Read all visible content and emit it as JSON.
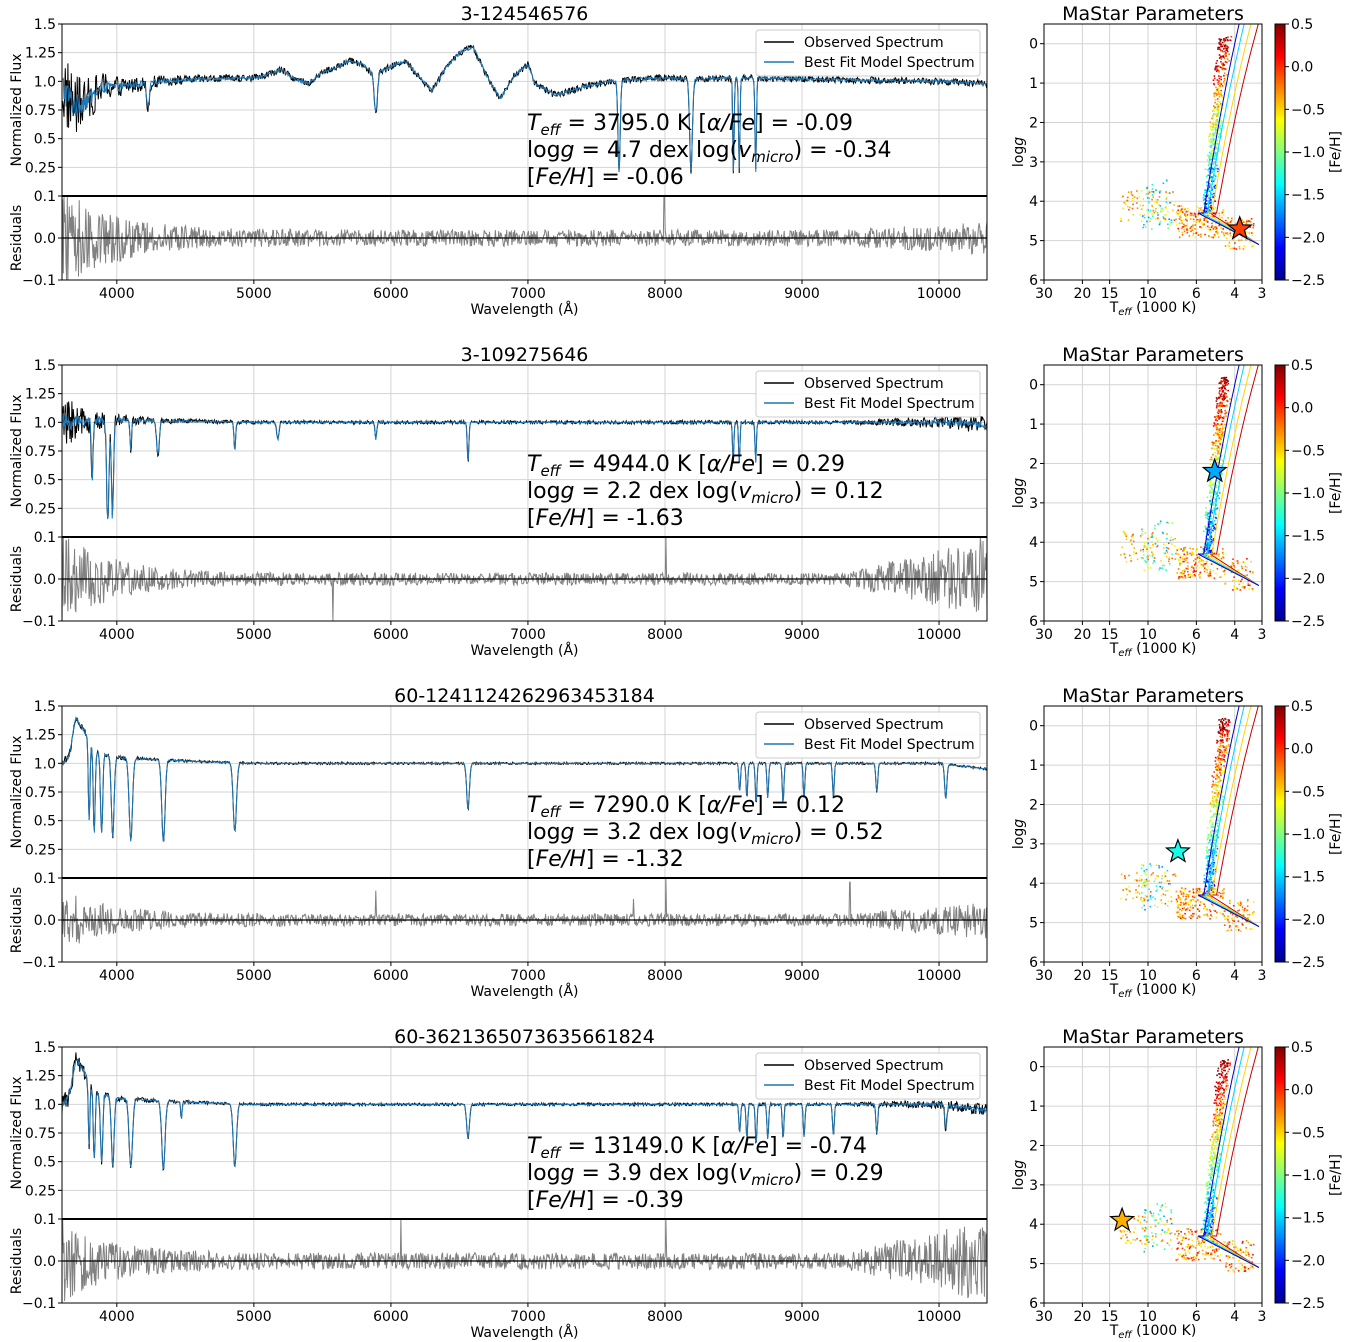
{
  "figure": {
    "spectrum_xlabel": "Wavelength (Å)",
    "flux_ylabel": "Normalized Flux",
    "resid_ylabel": "Residuals",
    "legend": [
      "Observed Spectrum",
      "Best Fit Model Spectrum"
    ],
    "hr_title": "MaStar Parameters",
    "hr_xlabel": "T",
    "hr_xlabel_sub": "eff",
    "hr_xlabel_tail": " (1000 K)",
    "hr_ylabel": "log",
    "hr_ylabel_italic": "g",
    "colorbar_label": "[Fe/H]",
    "colors": {
      "observed": "#000000",
      "model": "#1f77b4",
      "residual": "#808080",
      "grid": "#d4d4d4"
    }
  },
  "chart_data": [
    {
      "type": "line",
      "title": "3-124546576",
      "xlabel": "Wavelength (Å)",
      "ylabel": "Normalized Flux",
      "xlim": [
        3600,
        10350
      ],
      "xticks": [
        4000,
        5000,
        6000,
        7000,
        8000,
        9000,
        10000
      ],
      "ylim": [
        0,
        1.5
      ],
      "yticks": [
        0.25,
        0.5,
        0.75,
        1.0,
        1.25,
        1.5
      ],
      "ytick_labels": [
        "0.25",
        "0.5",
        "0.75",
        "1.0",
        "1.25",
        "1.5"
      ],
      "series": [
        {
          "name": "Observed Spectrum"
        },
        {
          "name": "Best Fit Model Spectrum"
        }
      ],
      "profile_knots": [
        [
          3600,
          0.95
        ],
        [
          3700,
          0.78
        ],
        [
          3800,
          0.85
        ],
        [
          3900,
          0.95
        ],
        [
          4000,
          0.95
        ],
        [
          4300,
          1.0
        ],
        [
          4600,
          1.02
        ],
        [
          5000,
          1.03
        ],
        [
          5100,
          1.06
        ],
        [
          5200,
          1.1
        ],
        [
          5300,
          1.02
        ],
        [
          5400,
          0.98
        ],
        [
          5500,
          1.08
        ],
        [
          5600,
          1.12
        ],
        [
          5700,
          1.18
        ],
        [
          5800,
          1.15
        ],
        [
          5850,
          1.08
        ],
        [
          5950,
          1.1
        ],
        [
          6100,
          1.18
        ],
        [
          6200,
          1.05
        ],
        [
          6300,
          0.92
        ],
        [
          6400,
          1.12
        ],
        [
          6500,
          1.25
        ],
        [
          6600,
          1.3
        ],
        [
          6700,
          1.05
        ],
        [
          6800,
          0.85
        ],
        [
          6900,
          1.05
        ],
        [
          7000,
          1.15
        ],
        [
          7050,
          0.98
        ],
        [
          7200,
          0.88
        ],
        [
          7400,
          0.95
        ],
        [
          7600,
          1.0
        ],
        [
          7800,
          1.02
        ],
        [
          8000,
          1.03
        ],
        [
          8200,
          1.02
        ],
        [
          8500,
          1.03
        ],
        [
          9000,
          1.02
        ],
        [
          9500,
          1.01
        ],
        [
          10000,
          1.0
        ],
        [
          10350,
          0.98
        ]
      ],
      "absorption_lines": [
        [
          4227,
          0.22,
          10
        ],
        [
          5890,
          0.35,
          12
        ],
        [
          7665,
          0.8,
          8
        ],
        [
          8190,
          0.8,
          10
        ],
        [
          8500,
          0.84,
          5
        ],
        [
          8542,
          0.8,
          5
        ],
        [
          8662,
          0.82,
          5
        ]
      ],
      "noise": {
        "blue": 0.35,
        "base": 0.03
      },
      "residual": {
        "ylim": [
          -0.1,
          0.1
        ],
        "yticks": [
          0.1,
          0.0,
          -0.1
        ],
        "ytick_labels": [
          "0.1",
          "0.0",
          "−0.1"
        ],
        "noise_blue": 0.12,
        "noise_base": 0.02,
        "noise_red": 0.02,
        "spikes": [
          [
            7995,
            0.1
          ]
        ]
      },
      "annotation": {
        "teff": "3795.0 K",
        "logg": "4.7 dex",
        "feh": "-0.06",
        "alpha": "-0.09",
        "vmicro": "-0.34"
      },
      "hr_point": {
        "teff_k": 3795,
        "logg": 4.7,
        "feh": -0.06
      }
    },
    {
      "type": "line",
      "title": "3-109275646",
      "xlabel": "Wavelength (Å)",
      "ylabel": "Normalized Flux",
      "xlim": [
        3600,
        10350
      ],
      "xticks": [
        4000,
        5000,
        6000,
        7000,
        8000,
        9000,
        10000
      ],
      "ylim": [
        0,
        1.5
      ],
      "yticks": [
        0.25,
        0.5,
        0.75,
        1.0,
        1.25,
        1.5
      ],
      "ytick_labels": [
        "0.25",
        "0.5",
        "0.75",
        "1.0",
        "1.25",
        "1.5"
      ],
      "series": [
        {
          "name": "Observed Spectrum"
        },
        {
          "name": "Best Fit Model Spectrum"
        }
      ],
      "profile_knots": [
        [
          3600,
          1.0
        ],
        [
          4000,
          1.02
        ],
        [
          4500,
          1.01
        ],
        [
          5000,
          1.0
        ],
        [
          6000,
          1.0
        ],
        [
          7000,
          1.0
        ],
        [
          8000,
          1.0
        ],
        [
          9000,
          1.0
        ],
        [
          10000,
          1.0
        ],
        [
          10350,
          0.98
        ]
      ],
      "absorption_lines": [
        [
          3934,
          0.9,
          8
        ],
        [
          3968,
          0.85,
          8
        ],
        [
          3820,
          0.5,
          6
        ],
        [
          4102,
          0.25,
          6
        ],
        [
          4300,
          0.3,
          10
        ],
        [
          4861,
          0.25,
          6
        ],
        [
          5175,
          0.15,
          8
        ],
        [
          5890,
          0.15,
          6
        ],
        [
          6563,
          0.35,
          6
        ],
        [
          8498,
          0.35,
          5
        ],
        [
          8542,
          0.35,
          5
        ],
        [
          8662,
          0.35,
          5
        ]
      ],
      "noise": {
        "blue": 0.22,
        "base": 0.015,
        "red": 0.06
      },
      "residual": {
        "ylim": [
          -0.1,
          0.1
        ],
        "yticks": [
          0.1,
          0.0,
          -0.1
        ],
        "ytick_labels": [
          "0.1",
          "0.0",
          "−0.1"
        ],
        "noise_blue": 0.1,
        "noise_base": 0.015,
        "noise_red": 0.08,
        "spikes": [
          [
            5577,
            -0.1
          ],
          [
            8005,
            0.1
          ],
          [
            10300,
            0.1
          ]
        ]
      },
      "annotation": {
        "teff": "4944.0 K",
        "logg": "2.2 dex",
        "feh": "-1.63",
        "alpha": "0.29",
        "vmicro": "0.12"
      },
      "hr_point": {
        "teff_k": 4944,
        "logg": 2.2,
        "feh": -1.63
      }
    },
    {
      "type": "line",
      "title": "60-1241124262963453184",
      "xlabel": "Wavelength (Å)",
      "ylabel": "Normalized Flux",
      "xlim": [
        3600,
        10350
      ],
      "xticks": [
        4000,
        5000,
        6000,
        7000,
        8000,
        9000,
        10000
      ],
      "ylim": [
        0,
        1.5
      ],
      "yticks": [
        0.25,
        0.5,
        0.75,
        1.0,
        1.25,
        1.5
      ],
      "ytick_labels": [
        "0.25",
        "0.5",
        "0.75",
        "1.0",
        "1.25",
        "1.5"
      ],
      "series": [
        {
          "name": "Observed Spectrum"
        },
        {
          "name": "Best Fit Model Spectrum"
        }
      ],
      "profile_knots": [
        [
          3600,
          1.0
        ],
        [
          3650,
          1.05
        ],
        [
          3700,
          1.4
        ],
        [
          3750,
          1.3
        ],
        [
          3850,
          1.1
        ],
        [
          4000,
          1.05
        ],
        [
          4500,
          1.02
        ],
        [
          5000,
          1.0
        ],
        [
          7000,
          1.0
        ],
        [
          9000,
          1.0
        ],
        [
          10000,
          1.0
        ],
        [
          10350,
          0.95
        ]
      ],
      "absorption_lines": [
        [
          3798,
          0.7,
          6
        ],
        [
          3835,
          0.75,
          7
        ],
        [
          3889,
          0.7,
          8
        ],
        [
          3970,
          0.7,
          10
        ],
        [
          4102,
          0.72,
          12
        ],
        [
          4340,
          0.72,
          12
        ],
        [
          4861,
          0.6,
          12
        ],
        [
          6563,
          0.4,
          10
        ],
        [
          8545,
          0.25,
          6
        ],
        [
          8598,
          0.3,
          6
        ],
        [
          8665,
          0.35,
          6
        ],
        [
          8750,
          0.3,
          6
        ],
        [
          8862,
          0.35,
          6
        ],
        [
          9015,
          0.3,
          6
        ],
        [
          9229,
          0.3,
          6
        ],
        [
          9546,
          0.25,
          7
        ],
        [
          10049,
          0.3,
          8
        ]
      ],
      "noise": {
        "blue": 0.04,
        "base": 0.01
      },
      "residual": {
        "ylim": [
          -0.1,
          0.1
        ],
        "yticks": [
          0.1,
          0.0,
          -0.1
        ],
        "ytick_labels": [
          "0.1",
          "0.0",
          "−0.1"
        ],
        "noise_blue": 0.06,
        "noise_base": 0.015,
        "noise_red": 0.03,
        "spikes": [
          [
            5890,
            0.07
          ],
          [
            7770,
            0.05
          ],
          [
            8005,
            0.1
          ],
          [
            9350,
            0.09
          ]
        ]
      },
      "annotation": {
        "teff": "7290.0 K",
        "logg": "3.2 dex",
        "feh": "-1.32",
        "alpha": "0.12",
        "vmicro": "0.52"
      },
      "hr_point": {
        "teff_k": 7290,
        "logg": 3.2,
        "feh": -1.32
      }
    },
    {
      "type": "line",
      "title": "60-3621365073635661824",
      "xlabel": "Wavelength (Å)",
      "ylabel": "Normalized Flux",
      "xlim": [
        3600,
        10350
      ],
      "xticks": [
        4000,
        5000,
        6000,
        7000,
        8000,
        9000,
        10000
      ],
      "ylim": [
        0,
        1.5
      ],
      "yticks": [
        0.25,
        0.5,
        0.75,
        1.0,
        1.25,
        1.5
      ],
      "ytick_labels": [
        "0.25",
        "0.5",
        "0.75",
        "1.0",
        "1.25",
        "1.5"
      ],
      "series": [
        {
          "name": "Observed Spectrum"
        },
        {
          "name": "Best Fit Model Spectrum"
        }
      ],
      "profile_knots": [
        [
          3600,
          1.0
        ],
        [
          3650,
          1.05
        ],
        [
          3700,
          1.4
        ],
        [
          3750,
          1.3
        ],
        [
          3850,
          1.1
        ],
        [
          4000,
          1.05
        ],
        [
          4500,
          1.02
        ],
        [
          5000,
          1.0
        ],
        [
          7000,
          1.0
        ],
        [
          9000,
          1.0
        ],
        [
          10000,
          1.0
        ],
        [
          10350,
          0.95
        ]
      ],
      "absorption_lines": [
        [
          3798,
          0.55,
          6
        ],
        [
          3835,
          0.6,
          7
        ],
        [
          3889,
          0.6,
          8
        ],
        [
          3970,
          0.6,
          10
        ],
        [
          4102,
          0.6,
          12
        ],
        [
          4340,
          0.6,
          12
        ],
        [
          4471,
          0.15,
          5
        ],
        [
          4861,
          0.55,
          12
        ],
        [
          6563,
          0.3,
          10
        ],
        [
          8545,
          0.25,
          6
        ],
        [
          8598,
          0.3,
          6
        ],
        [
          8665,
          0.35,
          6
        ],
        [
          8750,
          0.3,
          6
        ],
        [
          8862,
          0.3,
          6
        ],
        [
          9015,
          0.28,
          6
        ],
        [
          9229,
          0.28,
          6
        ],
        [
          9546,
          0.25,
          7
        ],
        [
          10049,
          0.2,
          8
        ]
      ],
      "noise": {
        "blue": 0.08,
        "base": 0.012,
        "red": 0.04
      },
      "residual": {
        "ylim": [
          -0.1,
          0.1
        ],
        "yticks": [
          0.1,
          0.0,
          -0.1
        ],
        "ytick_labels": [
          "0.1",
          "0.0",
          "−0.1"
        ],
        "noise_blue": 0.08,
        "noise_base": 0.02,
        "noise_red": 0.08,
        "spikes": [
          [
            6075,
            0.1
          ],
          [
            8005,
            0.1
          ]
        ]
      },
      "annotation": {
        "teff": "13149.0 K",
        "logg": "3.9 dex",
        "feh": "-0.39",
        "alpha": "-0.74",
        "vmicro": "0.29"
      },
      "hr_point": {
        "teff_k": 13149,
        "logg": 3.9,
        "feh": -0.39
      }
    }
  ],
  "hr_axes": {
    "xscale": "log",
    "x_reversed": true,
    "xlim_k": [
      30000,
      3000
    ],
    "xticks_k": [
      30000,
      20000,
      15000,
      10000,
      6000,
      4000,
      3000
    ],
    "xtick_labels": [
      "30",
      "20",
      "15",
      "10",
      "6",
      "4",
      "3"
    ],
    "ylim": [
      6,
      -0.5
    ],
    "yticks": [
      0,
      1,
      2,
      3,
      4,
      5,
      6
    ],
    "ytick_labels": [
      "0",
      "1",
      "2",
      "3",
      "4",
      "5",
      "6"
    ],
    "colorbar": {
      "range": [
        -2.5,
        0.5
      ],
      "ticks": [
        0.5,
        0.0,
        -0.5,
        -1.0,
        -1.5,
        -2.0,
        -2.5
      ],
      "tick_labels": [
        "0.5",
        "0.0",
        "−0.5",
        "−1.0",
        "−1.5",
        "−2.0",
        "−2.5"
      ],
      "colormap": "jet"
    },
    "grid": true
  }
}
